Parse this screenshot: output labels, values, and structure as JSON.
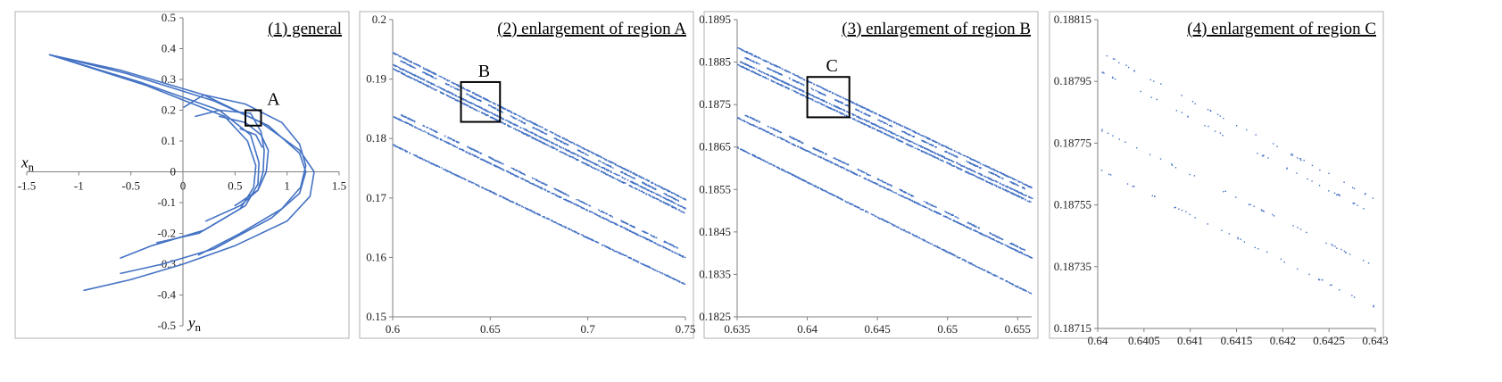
{
  "colors": {
    "series": "#4472C4",
    "frame": "#b0b0b0",
    "axis": "#7f7f7f",
    "box": "#000000"
  },
  "chart_data": [
    {
      "type": "scatter",
      "title": "(1) general",
      "xlabel": "x",
      "xlabel_sub": "n",
      "ylabel": "y",
      "ylabel_sub": "n",
      "xlim": [
        -1.5,
        1.5
      ],
      "ylim": [
        -0.5,
        0.5
      ],
      "xticks": [
        "-1.5",
        "-1",
        "-0.5",
        "0",
        "0.5",
        "1",
        "1.5"
      ],
      "yticks": [
        "-0.5",
        "-0.4",
        "-0.3",
        "-0.2",
        "-0.1",
        "0",
        "0.1",
        "0.2",
        "0.3",
        "0.4",
        "0.5"
      ],
      "axes_through_origin": true,
      "grid": false,
      "curves": [
        [
          [
            -1.28,
            0.38
          ],
          [
            -0.6,
            0.33
          ],
          [
            0.2,
            0.25
          ],
          [
            0.75,
            0.16
          ],
          [
            1.12,
            0.07
          ],
          [
            1.26,
            0
          ],
          [
            1.22,
            -0.08
          ],
          [
            1.0,
            -0.16
          ],
          [
            0.5,
            -0.24
          ],
          [
            0,
            -0.3
          ],
          [
            -0.5,
            -0.35
          ],
          [
            -0.95,
            -0.385
          ]
        ],
        [
          [
            -1.28,
            0.38
          ],
          [
            -0.55,
            0.32
          ],
          [
            0.3,
            0.23
          ],
          [
            0.82,
            0.15
          ],
          [
            1.12,
            0.06
          ],
          [
            1.18,
            0
          ],
          [
            1.12,
            -0.07
          ],
          [
            0.85,
            -0.15
          ],
          [
            0.3,
            -0.25
          ],
          [
            -0.2,
            -0.3
          ],
          [
            -0.6,
            -0.33
          ]
        ],
        [
          [
            -1.28,
            0.38
          ],
          [
            -0.4,
            0.29
          ],
          [
            0.35,
            0.2
          ],
          [
            0.65,
            0.12
          ],
          [
            0.73,
            0.03
          ],
          [
            0.72,
            -0.04
          ],
          [
            0.6,
            -0.11
          ],
          [
            0.2,
            -0.19
          ],
          [
            -0.3,
            -0.24
          ],
          [
            -0.6,
            -0.28
          ]
        ],
        [
          [
            -1.28,
            0.38
          ],
          [
            -0.35,
            0.28
          ],
          [
            0.4,
            0.18
          ],
          [
            0.62,
            0.1
          ],
          [
            0.7,
            0.02
          ],
          [
            0.68,
            -0.05
          ],
          [
            0.55,
            -0.12
          ],
          [
            0.15,
            -0.2
          ],
          [
            -0.25,
            -0.23
          ]
        ],
        [
          [
            0.01,
            0.21
          ],
          [
            0.2,
            0.25
          ],
          [
            0.6,
            0.22
          ],
          [
            0.95,
            0.16
          ],
          [
            1.12,
            0.09
          ],
          [
            1.18,
            0.02
          ],
          [
            1.13,
            -0.05
          ],
          [
            0.95,
            -0.12
          ],
          [
            0.55,
            -0.2
          ],
          [
            0.15,
            -0.27
          ]
        ],
        [
          [
            0.12,
            0.18
          ],
          [
            0.35,
            0.2
          ],
          [
            0.65,
            0.19
          ],
          [
            0.75,
            0.13
          ],
          [
            0.78,
            0.07
          ],
          [
            0.77,
            0.0
          ],
          [
            0.72,
            -0.06
          ],
          [
            0.55,
            -0.11
          ],
          [
            0.22,
            -0.16
          ]
        ],
        [
          [
            0.35,
            0.18
          ],
          [
            0.6,
            0.16
          ],
          [
            0.75,
            0.12
          ],
          [
            0.82,
            0.07
          ],
          [
            0.8,
            0.0
          ],
          [
            0.72,
            -0.06
          ],
          [
            0.5,
            -0.11
          ]
        ],
        [
          [
            0.55,
            0.14
          ],
          [
            0.7,
            0.12
          ],
          [
            0.76,
            0.08
          ]
        ]
      ],
      "region_box": {
        "label": "A",
        "x": [
          0.6,
          0.75
        ],
        "y": [
          0.15,
          0.2
        ]
      }
    },
    {
      "type": "scatter",
      "title": "(2) enlargement of region A",
      "xlim": [
        0.6,
        0.75
      ],
      "ylim": [
        0.15,
        0.2
      ],
      "xticks": [
        "0.6",
        "0.65",
        "0.7",
        "0.75"
      ],
      "yticks": [
        "0.15",
        "0.16",
        "0.17",
        "0.18",
        "0.19",
        "0.2"
      ],
      "grid": false,
      "lines": [
        [
          0.6,
          0.1945,
          0.75,
          0.1698
        ],
        [
          0.6,
          0.1938,
          0.75,
          0.169
        ],
        [
          0.6,
          0.1925,
          0.75,
          0.1683
        ],
        [
          0.6,
          0.1918,
          0.75,
          0.1675
        ],
        [
          0.6,
          0.1847,
          0.75,
          0.161
        ],
        [
          0.6,
          0.1838,
          0.75,
          0.16
        ],
        [
          0.6,
          0.179,
          0.75,
          0.1555
        ]
      ],
      "region_box": {
        "label": "B",
        "x": [
          0.635,
          0.655
        ],
        "y": [
          0.1828,
          0.1895
        ]
      }
    },
    {
      "type": "scatter",
      "title": "(3) enlargement of region B",
      "xlim": [
        0.635,
        0.656
      ],
      "ylim": [
        0.1825,
        0.1895
      ],
      "xticks": [
        "0.635",
        "0.64",
        "0.645",
        "0.65",
        "0.655"
      ],
      "yticks": [
        "0.1825",
        "0.1835",
        "0.1845",
        "0.1855",
        "0.1865",
        "0.1875",
        "0.1885",
        "0.1895"
      ],
      "grid": false,
      "lines": [
        [
          0.635,
          0.18885,
          0.656,
          0.18555
        ],
        [
          0.635,
          0.1887,
          0.656,
          0.18545
        ],
        [
          0.635,
          0.18855,
          0.656,
          0.1853
        ],
        [
          0.635,
          0.18845,
          0.656,
          0.1852
        ],
        [
          0.635,
          0.18735,
          0.656,
          0.184
        ],
        [
          0.635,
          0.1872,
          0.656,
          0.1839
        ],
        [
          0.635,
          0.1865,
          0.656,
          0.18305
        ]
      ],
      "region_box": {
        "label": "C",
        "x": [
          0.64,
          0.643
        ],
        "y": [
          0.1872,
          0.18815
        ]
      }
    },
    {
      "type": "scatter",
      "title": "(4)  enlargement of region C",
      "xlim": [
        0.64,
        0.643
      ],
      "ylim": [
        0.18715,
        0.18815
      ],
      "xticks": [
        "0.64",
        "0.6405",
        "0.641",
        "0.6415",
        "0.642",
        "0.6425",
        "0.643"
      ],
      "yticks": [
        "0.18715",
        "0.18735",
        "0.18755",
        "0.18775",
        "0.18795",
        "0.18815"
      ],
      "grid": false,
      "lines": [
        [
          0.64,
          0.18805,
          0.643,
          0.18757
        ],
        [
          0.64,
          0.18799,
          0.643,
          0.18752
        ],
        [
          0.64,
          0.1878,
          0.643,
          0.18735
        ],
        [
          0.64,
          0.18767,
          0.643,
          0.18722
        ]
      ]
    }
  ]
}
